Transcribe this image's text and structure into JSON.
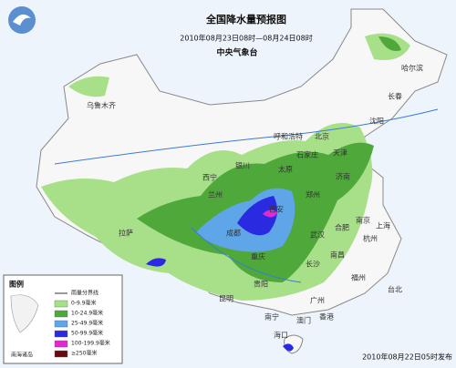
{
  "header": {
    "title": "全国降水量预报图",
    "subtitle": "2010年08月23日08时—08月24日08时",
    "issuer": "中央气象台"
  },
  "cities": [
    "乌鲁木齐",
    "哈尔滨",
    "长春",
    "沈阳",
    "呼和浩特",
    "北京",
    "天津",
    "石家庄",
    "太原",
    "济南",
    "银川",
    "西宁",
    "兰州",
    "西安",
    "郑州",
    "南京",
    "合肥",
    "上海",
    "杭州",
    "武汉",
    "成都",
    "重庆",
    "拉萨",
    "贵阳",
    "长沙",
    "南昌",
    "福州",
    "昆明",
    "南宁",
    "广州",
    "香港",
    "澳门",
    "海口",
    "台北"
  ],
  "legend": {
    "title": "图例",
    "items": [
      "雨量分界线",
      "0-9.9毫米",
      "10-24.9毫米",
      "25-49.9毫米",
      "50-99.9毫米",
      "100-199.9毫米",
      "≥250毫米"
    ]
  },
  "inset": "南海诸岛",
  "footer": "2010年08月22日05时发布"
}
